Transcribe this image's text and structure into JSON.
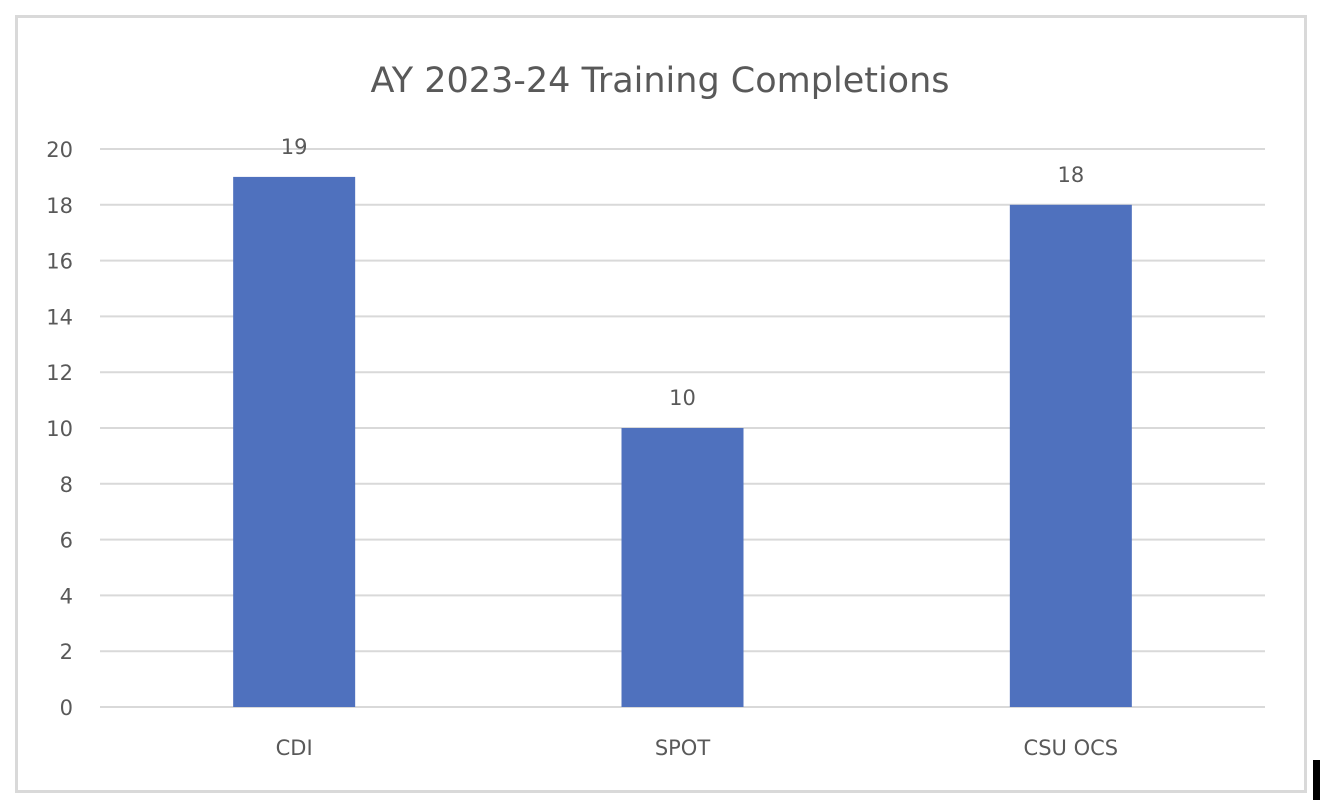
{
  "chart_data": {
    "type": "bar",
    "title": "AY 2023-24 Training Completions",
    "categories": [
      "CDI",
      "SPOT",
      "CSU OCS"
    ],
    "values": [
      19,
      10,
      18
    ],
    "data_labels": [
      "19",
      "10",
      "18"
    ],
    "xlabel": "",
    "ylabel": "",
    "ylim": [
      0,
      20
    ],
    "yticks": [
      "0",
      "2",
      "4",
      "6",
      "8",
      "10",
      "12",
      "14",
      "16",
      "18",
      "20"
    ],
    "grid": true,
    "legend": "none",
    "bar_color": "#4f71be",
    "grid_color": "#d9d9d9",
    "text_color": "#595959"
  }
}
